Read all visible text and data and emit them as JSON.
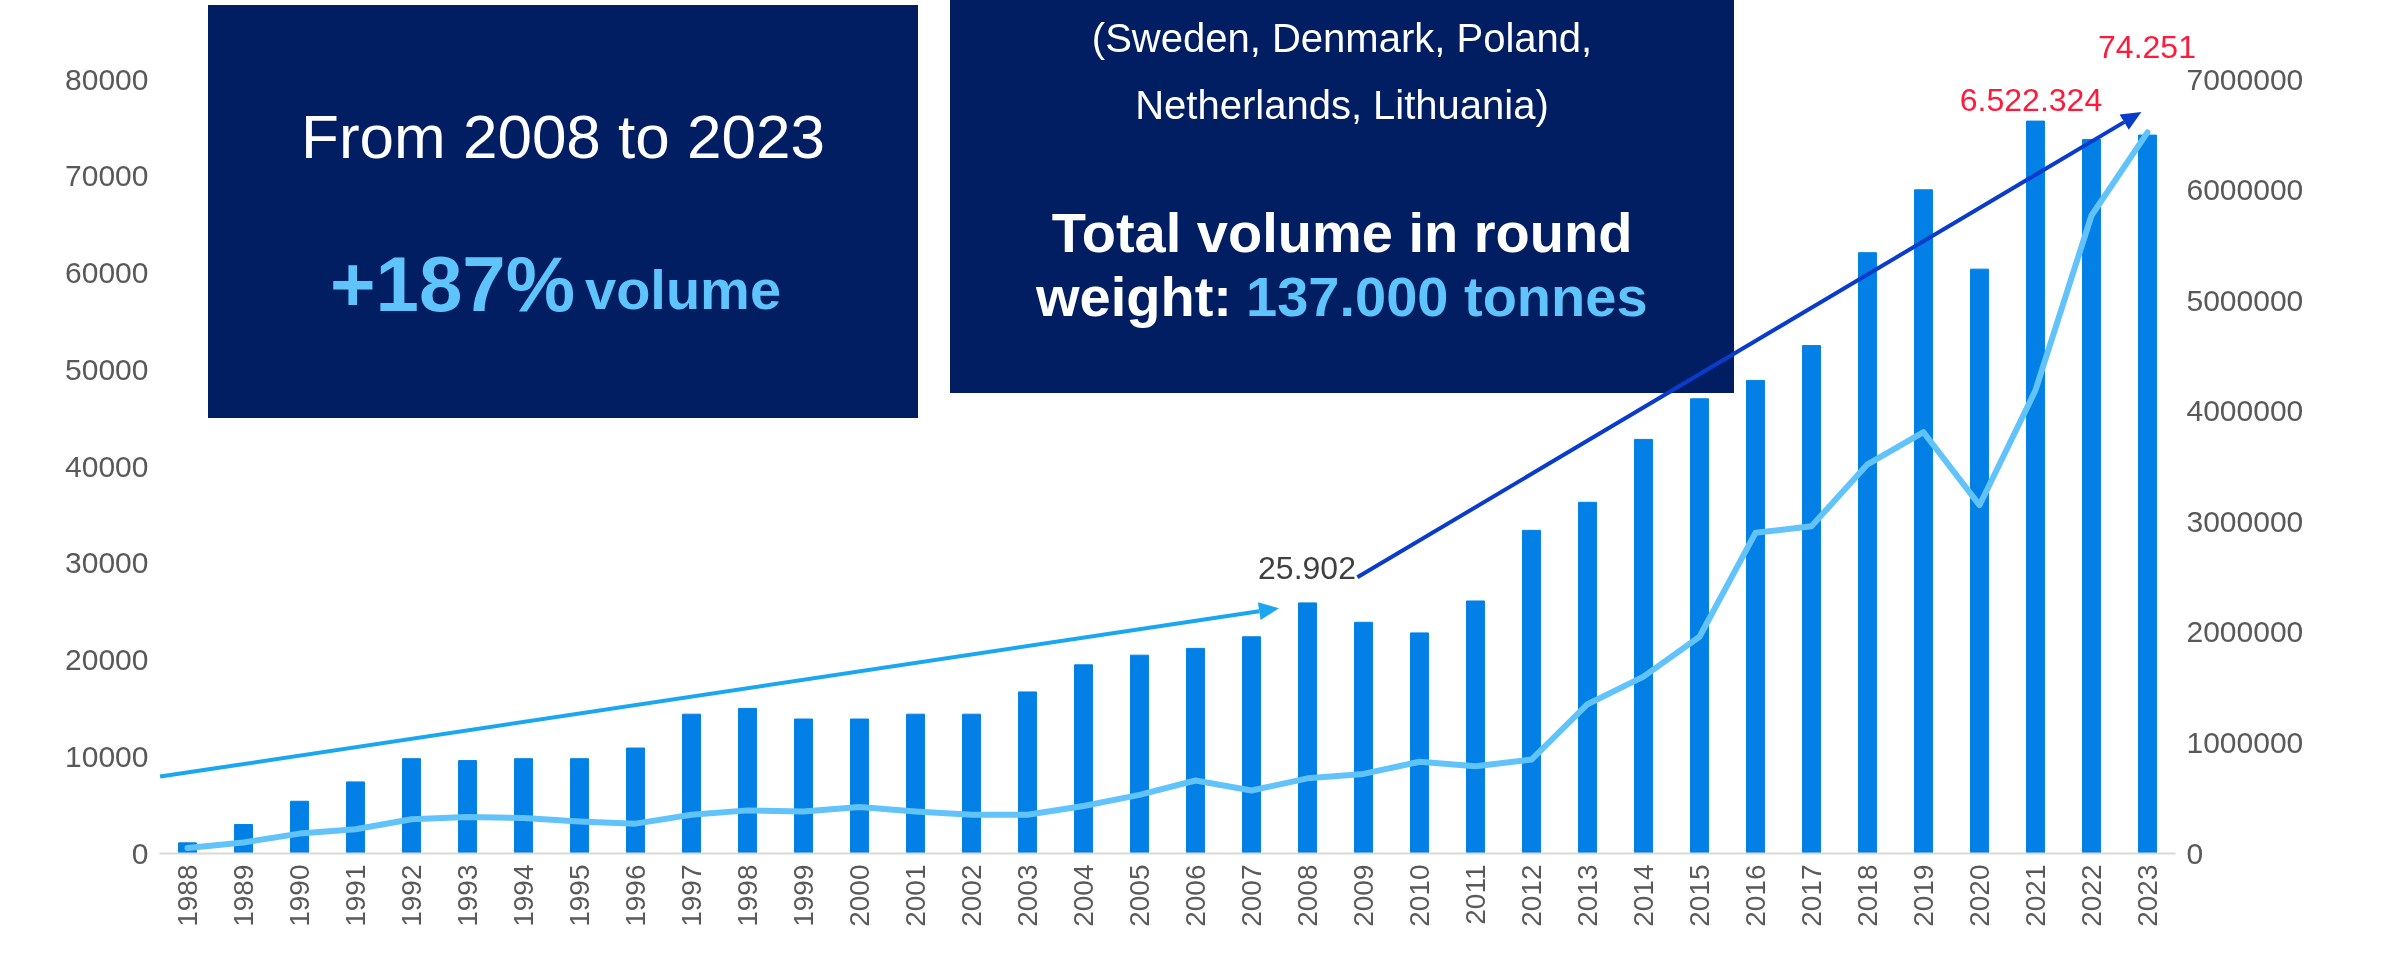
{
  "chart_data": {
    "type": "bar",
    "categories": [
      "1988",
      "1989",
      "1990",
      "1991",
      "1992",
      "1993",
      "1994",
      "1995",
      "1996",
      "1997",
      "1998",
      "1999",
      "2000",
      "2001",
      "2002",
      "2003",
      "2004",
      "2005",
      "2006",
      "2007",
      "2008",
      "2009",
      "2010",
      "2011",
      "2012",
      "2013",
      "2014",
      "2015",
      "2016",
      "2017",
      "2018",
      "2019",
      "2020",
      "2021",
      "2022",
      "2023"
    ],
    "series": [
      {
        "color": "#0380e5",
        "values": [
          1100,
          3000,
          5400,
          7400,
          9800,
          9600,
          9800,
          9800,
          10900,
          14400,
          15000,
          13900,
          13900,
          14400,
          14400,
          16700,
          19500,
          20500,
          21200,
          22400,
          25902,
          23900,
          22800,
          26100,
          33400,
          36300,
          42800,
          47000,
          48900,
          52500,
          62100,
          68600,
          60400,
          75700,
          73800,
          74251
        ],
        "value_labels": [
          null,
          null,
          null,
          null,
          null,
          null,
          null,
          null,
          null,
          null,
          null,
          null,
          null,
          null,
          null,
          null,
          null,
          null,
          null,
          null,
          "25.902",
          null,
          null,
          null,
          null,
          null,
          null,
          null,
          null,
          null,
          null,
          null,
          null,
          null,
          null,
          "74.251"
        ]
      },
      {
        "type": "line",
        "axis": "y2",
        "color": "#62c3fb",
        "values": [
          50000,
          100000,
          180000,
          220000,
          310000,
          330000,
          320000,
          290000,
          270000,
          350000,
          390000,
          380000,
          420000,
          380000,
          350000,
          350000,
          430000,
          530000,
          660000,
          570000,
          680000,
          720000,
          830000,
          790000,
          850000,
          1350000,
          1600000,
          1960000,
          2900000,
          2960000,
          3520000,
          3810000,
          3150000,
          4190000,
          5770000,
          6522324
        ],
        "value_labels": [
          null,
          null,
          null,
          null,
          null,
          null,
          null,
          null,
          null,
          null,
          null,
          null,
          null,
          null,
          null,
          null,
          null,
          null,
          null,
          null,
          null,
          null,
          null,
          null,
          null,
          null,
          null,
          null,
          null,
          null,
          null,
          null,
          null,
          null,
          null,
          "6.522.324"
        ]
      }
    ],
    "ylim": [
      0,
      80000
    ],
    "yticks": [
      0,
      10000,
      20000,
      30000,
      40000,
      50000,
      60000,
      70000,
      80000
    ],
    "y2lim": [
      0,
      7000000
    ],
    "y2ticks": [
      0,
      1000000,
      2000000,
      3000000,
      4000000,
      5000000,
      6000000,
      7000000
    ],
    "annotations": [
      "From 2008 to 2023",
      "+187%",
      "volume",
      "(Sweden, Denmark, Poland,",
      "Netherlands, Lithuania)",
      "Total volume in round",
      "weight:",
      "137.000 tonnes"
    ],
    "grid": false
  }
}
